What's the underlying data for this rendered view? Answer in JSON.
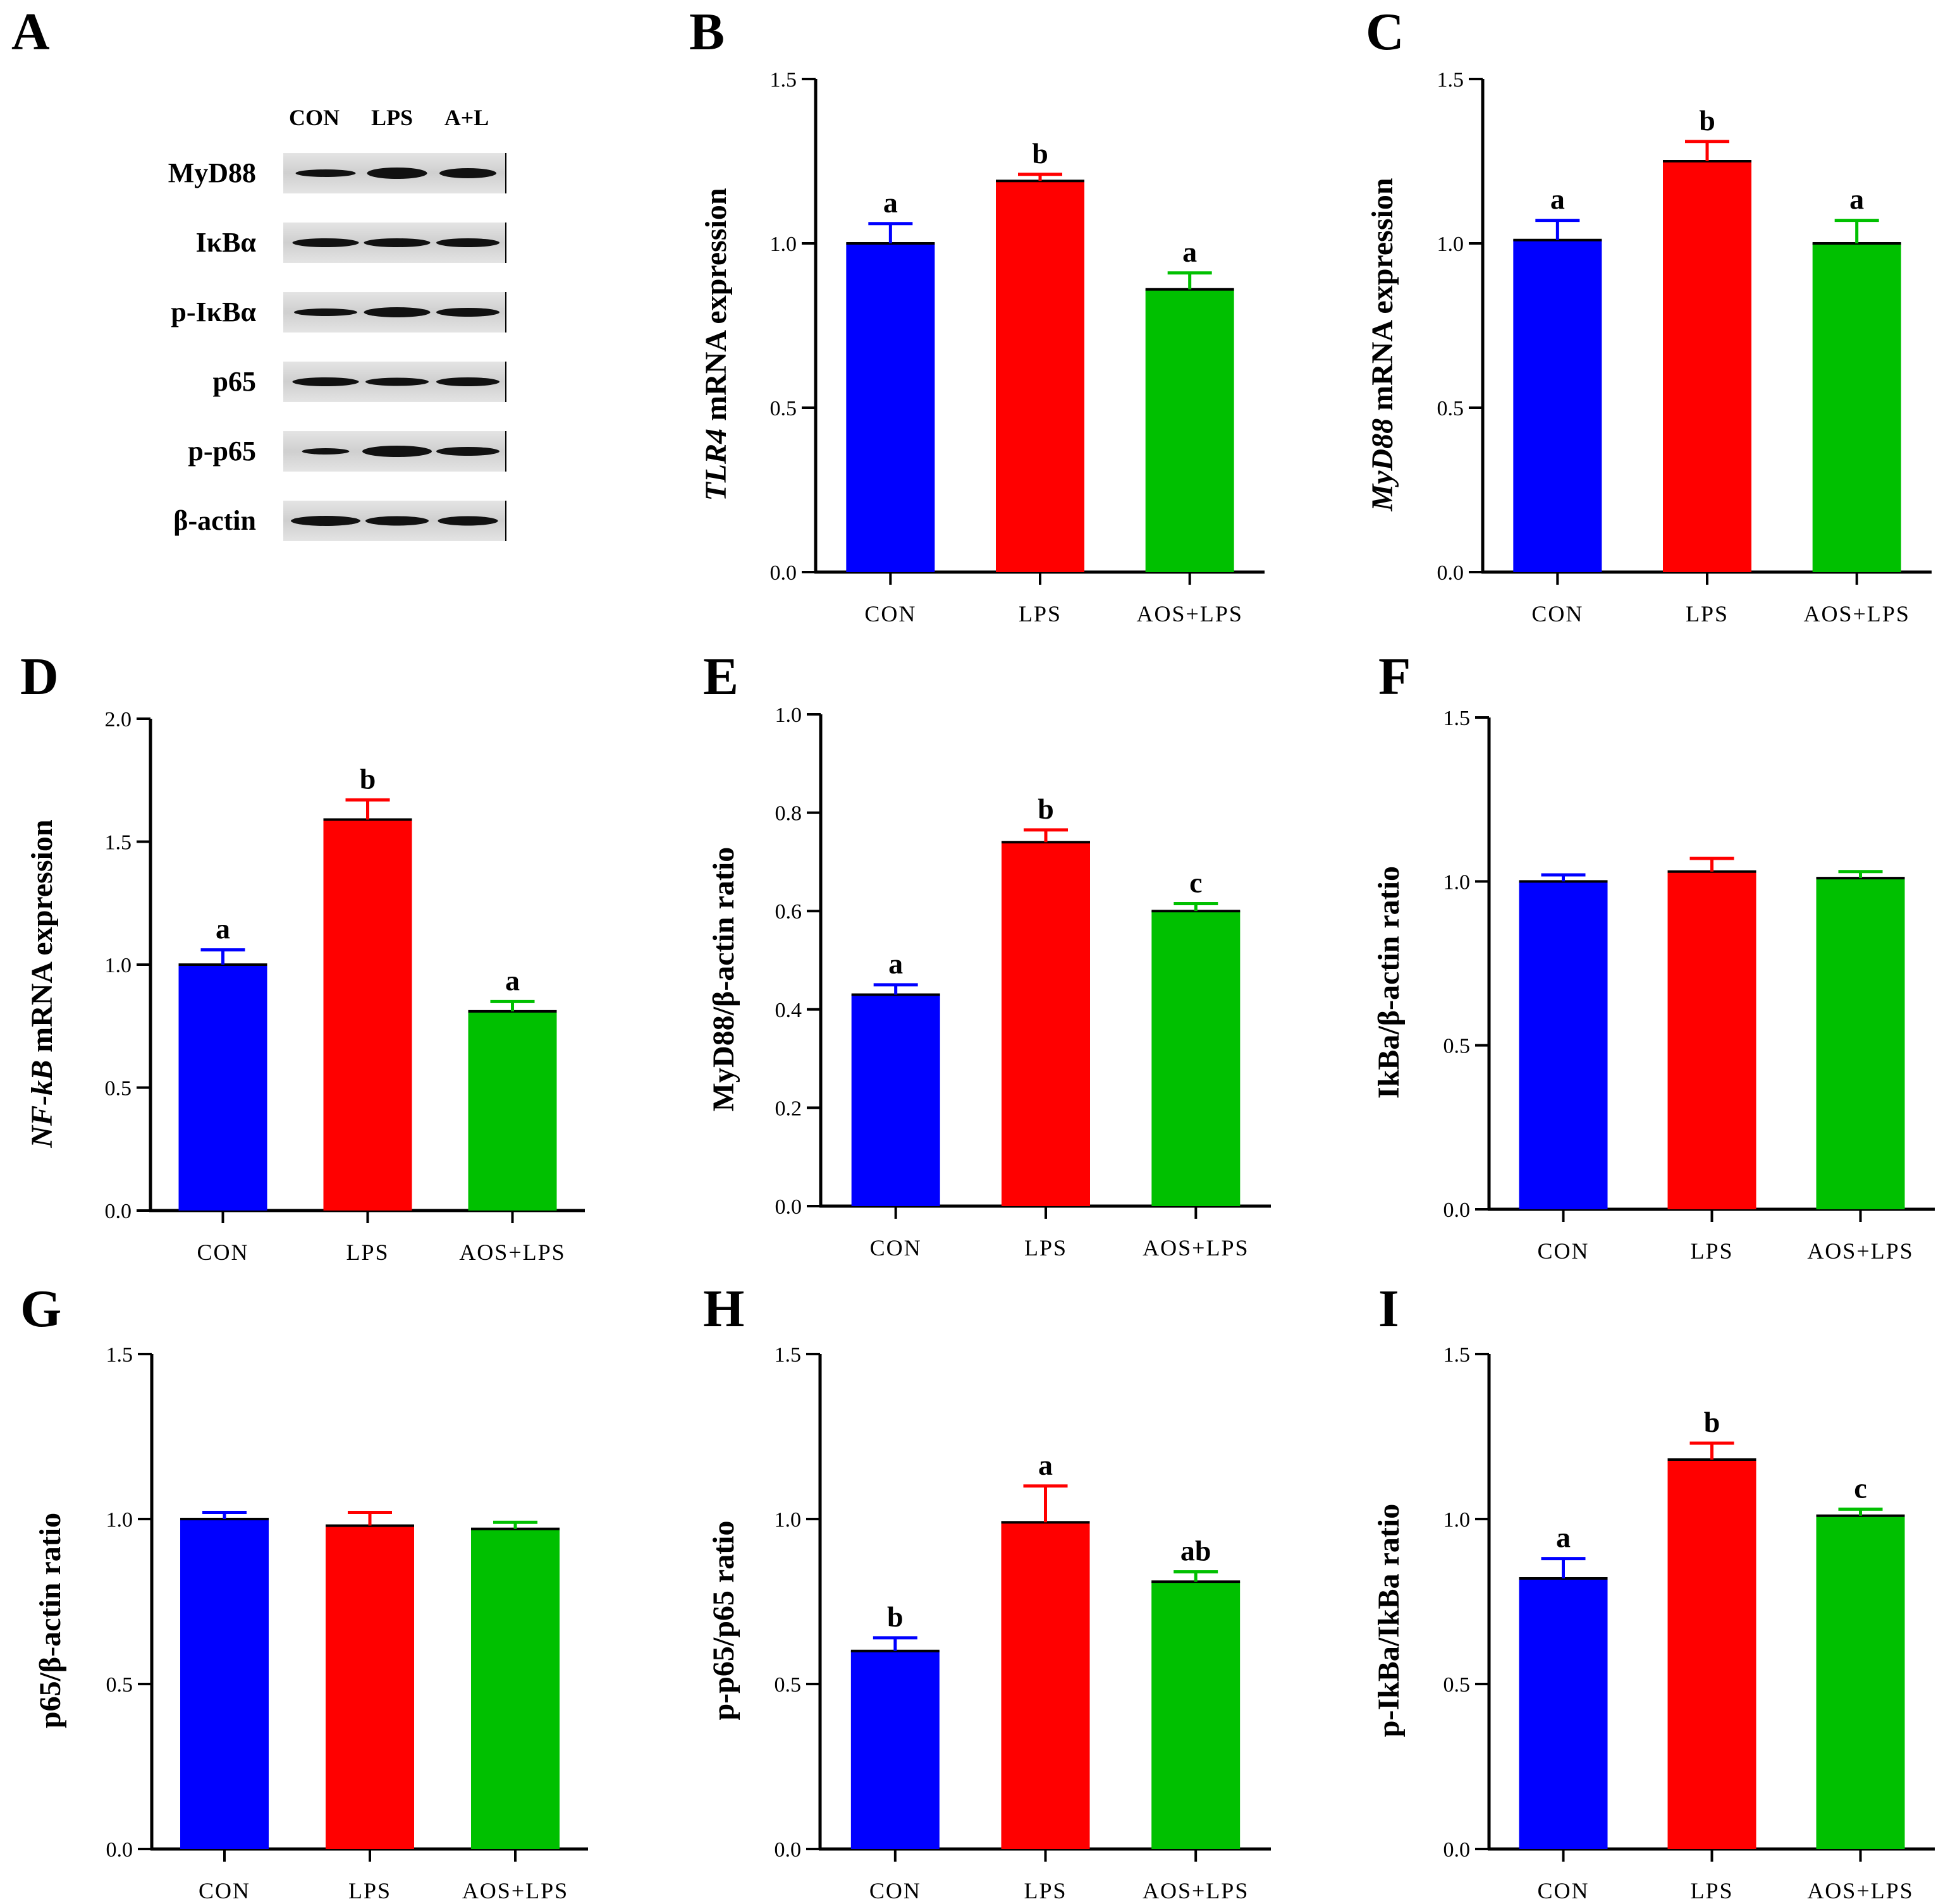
{
  "panel_letters": [
    "A",
    "B",
    "C",
    "D",
    "E",
    "F",
    "G",
    "H",
    "I"
  ],
  "blot": {
    "lanes": [
      "CON",
      "LPS",
      "A+L"
    ],
    "rows": [
      "MyD88",
      "IκBα",
      "p-IκBα",
      "p65",
      "p-p65",
      "β-actin"
    ]
  },
  "colors": {
    "CON": "#0000ff",
    "LPS": "#ff0000",
    "AOS+LPS": "#00c000"
  },
  "chart_data": [
    {
      "panel": "B",
      "type": "bar",
      "categories": [
        "CON",
        "LPS",
        "AOS+LPS"
      ],
      "values": [
        1.0,
        1.19,
        0.86
      ],
      "errors": [
        0.06,
        0.02,
        0.05
      ],
      "sig": [
        "a",
        "b",
        "a"
      ],
      "ylabel": "TLR4 mRNA expression",
      "ylabel_italic": "TLR4",
      "ylabel_rest": " mRNA expression",
      "ylim": [
        0,
        1.5
      ],
      "ticks": [
        "0.0",
        "0.5",
        "1.0",
        "1.5"
      ]
    },
    {
      "panel": "C",
      "type": "bar",
      "categories": [
        "CON",
        "LPS",
        "AOS+LPS"
      ],
      "values": [
        1.01,
        1.25,
        1.0
      ],
      "errors": [
        0.06,
        0.06,
        0.07
      ],
      "sig": [
        "a",
        "b",
        "a"
      ],
      "ylabel": "MyD88 mRNA expression",
      "ylabel_italic": "MyD88",
      "ylabel_rest": " mRNA expression",
      "ylim": [
        0,
        1.5
      ],
      "ticks": [
        "0.0",
        "0.5",
        "1.0",
        "1.5"
      ]
    },
    {
      "panel": "D",
      "type": "bar",
      "categories": [
        "CON",
        "LPS",
        "AOS+LPS"
      ],
      "values": [
        1.0,
        1.59,
        0.81
      ],
      "errors": [
        0.06,
        0.08,
        0.04
      ],
      "sig": [
        "a",
        "b",
        "a"
      ],
      "ylabel": "NF-kB mRNA expression",
      "ylabel_italic": "NF-kB",
      "ylabel_rest": " mRNA expression",
      "ylim": [
        0,
        2.0
      ],
      "ticks": [
        "0.0",
        "0.5",
        "1.0",
        "1.5",
        "2.0"
      ]
    },
    {
      "panel": "E",
      "type": "bar",
      "categories": [
        "CON",
        "LPS",
        "AOS+LPS"
      ],
      "values": [
        0.43,
        0.74,
        0.6
      ],
      "errors": [
        0.02,
        0.025,
        0.015
      ],
      "sig": [
        "a",
        "b",
        "c"
      ],
      "ylabel": "MyD88/β-actin ratio",
      "ylabel_italic": "",
      "ylabel_rest": "MyD88/β-actin ratio",
      "ylim": [
        0,
        1.0
      ],
      "ticks": [
        "0.0",
        "0.2",
        "0.4",
        "0.6",
        "0.8",
        "1.0"
      ]
    },
    {
      "panel": "F",
      "type": "bar",
      "categories": [
        "CON",
        "LPS",
        "AOS+LPS"
      ],
      "values": [
        1.0,
        1.03,
        1.01
      ],
      "errors": [
        0.02,
        0.04,
        0.02
      ],
      "sig": [
        "",
        "",
        ""
      ],
      "ylabel": "IkBa/β-actin ratio",
      "ylabel_italic": "",
      "ylabel_rest": "IkBa/β-actin ratio",
      "ylim": [
        0,
        1.5
      ],
      "ticks": [
        "0.0",
        "0.5",
        "1.0",
        "1.5"
      ]
    },
    {
      "panel": "G",
      "type": "bar",
      "categories": [
        "CON",
        "LPS",
        "AOS+LPS"
      ],
      "values": [
        1.0,
        0.98,
        0.97
      ],
      "errors": [
        0.02,
        0.04,
        0.02
      ],
      "sig": [
        "",
        "",
        ""
      ],
      "ylabel": "p65/β-actin ratio",
      "ylabel_italic": "",
      "ylabel_rest": "p65/β-actin ratio",
      "ylim": [
        0,
        1.5
      ],
      "ticks": [
        "0.0",
        "0.5",
        "1.0",
        "1.5"
      ]
    },
    {
      "panel": "H",
      "type": "bar",
      "categories": [
        "CON",
        "LPS",
        "AOS+LPS"
      ],
      "values": [
        0.6,
        0.99,
        0.81
      ],
      "errors": [
        0.04,
        0.11,
        0.03
      ],
      "sig": [
        "b",
        "a",
        "ab"
      ],
      "ylabel": "p-p65/p65 ratio",
      "ylabel_italic": "",
      "ylabel_rest": "p-p65/p65 ratio",
      "ylim": [
        0,
        1.5
      ],
      "ticks": [
        "0.0",
        "0.5",
        "1.0",
        "1.5"
      ]
    },
    {
      "panel": "I",
      "type": "bar",
      "categories": [
        "CON",
        "LPS",
        "AOS+LPS"
      ],
      "values": [
        0.82,
        1.18,
        1.01
      ],
      "errors": [
        0.06,
        0.05,
        0.02
      ],
      "sig": [
        "a",
        "b",
        "c"
      ],
      "ylabel": "p-IkBa/IkBa ratio",
      "ylabel_italic": "",
      "ylabel_rest": "p-IkBa/IkBa ratio",
      "ylim": [
        0,
        1.5
      ],
      "ticks": [
        "0.0",
        "0.5",
        "1.0",
        "1.5"
      ]
    }
  ]
}
